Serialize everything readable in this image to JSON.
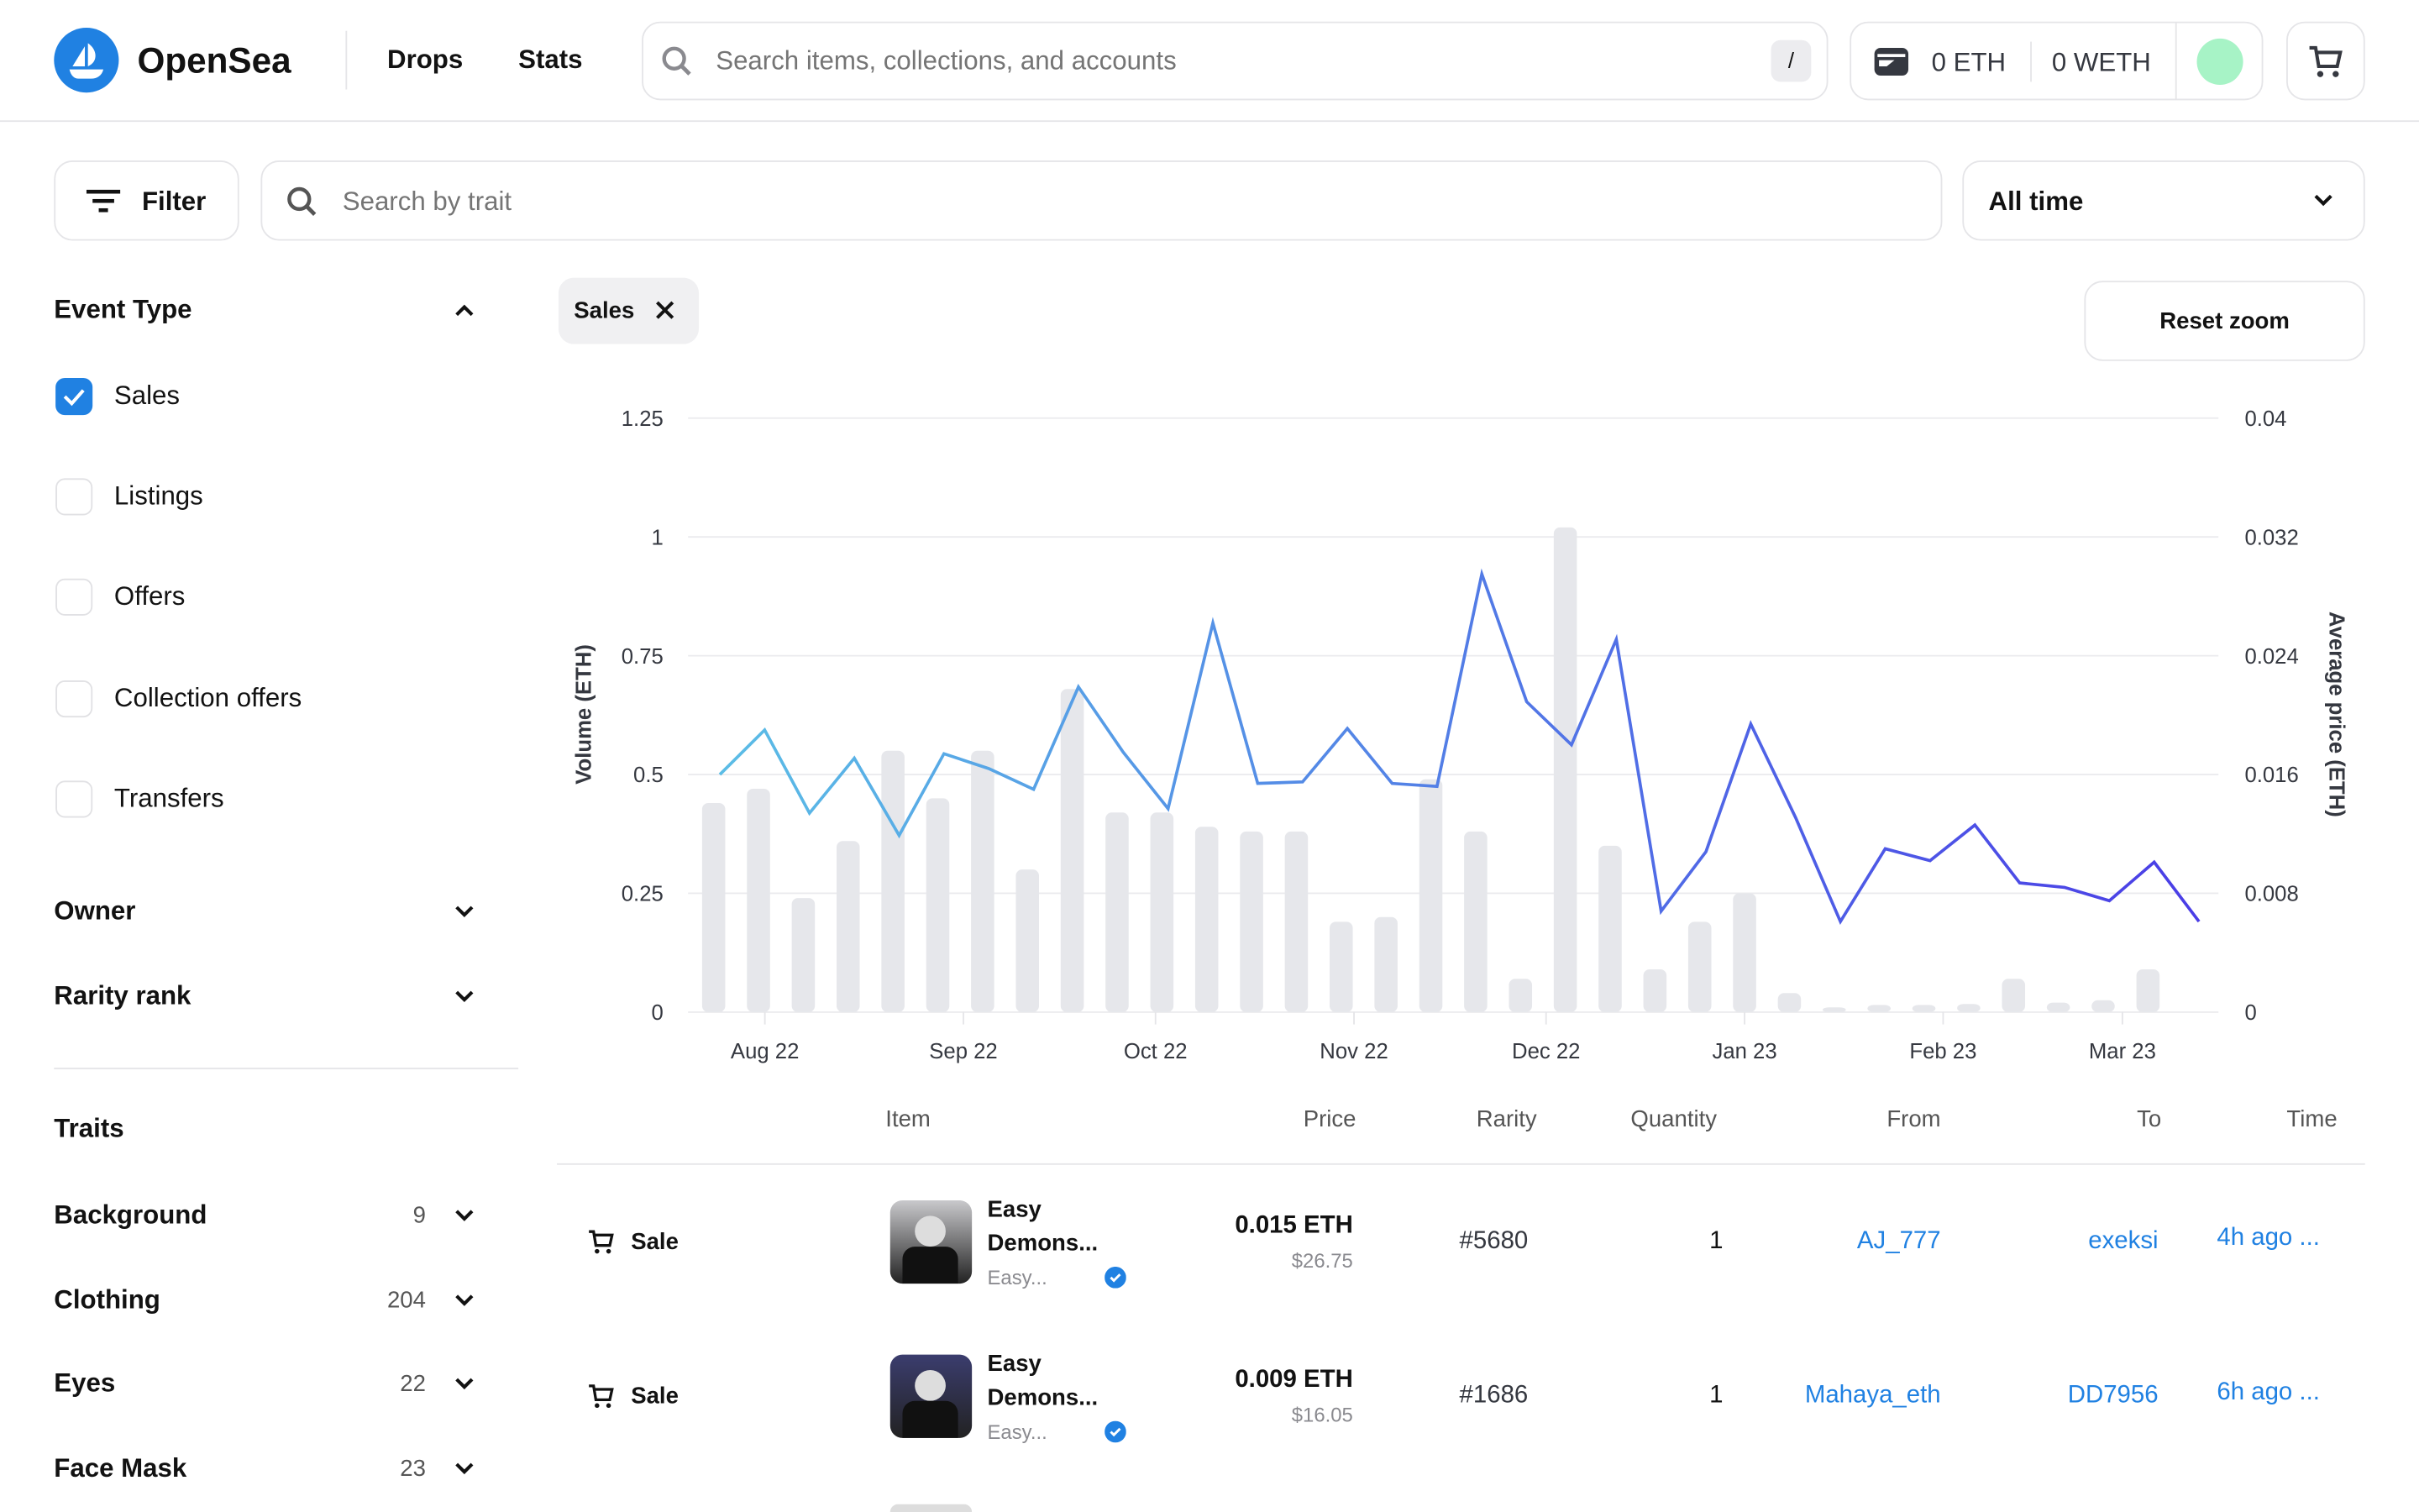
{
  "header": {
    "brand": "OpenSea",
    "nav": [
      "Drops",
      "Stats"
    ],
    "search_placeholder": "Search items, collections, and accounts",
    "search_shortcut": "/",
    "wallet": {
      "eth": "0 ETH",
      "weth": "0 WETH"
    },
    "avatar_color": "#a7f3c6"
  },
  "toolbar": {
    "filter_label": "Filter",
    "trait_search_placeholder": "Search by trait",
    "time_range": "All time"
  },
  "sidebar": {
    "event_type_title": "Event Type",
    "event_types": [
      {
        "label": "Sales",
        "checked": true
      },
      {
        "label": "Listings",
        "checked": false
      },
      {
        "label": "Offers",
        "checked": false
      },
      {
        "label": "Collection offers",
        "checked": false
      },
      {
        "label": "Transfers",
        "checked": false
      }
    ],
    "owner_title": "Owner",
    "rarity_title": "Rarity rank",
    "traits_title": "Traits",
    "traits": [
      {
        "label": "Background",
        "count": "9"
      },
      {
        "label": "Clothing",
        "count": "204"
      },
      {
        "label": "Eyes",
        "count": "22"
      },
      {
        "label": "Face Mask",
        "count": "23"
      }
    ]
  },
  "main": {
    "active_chip": "Sales",
    "reset_zoom": "Reset zoom"
  },
  "chart_data": {
    "type": "bar+line",
    "ylabel_left": "Volume (ETH)",
    "ylabel_right": "Average price (ETH)",
    "ylim_left": [
      0,
      1.25
    ],
    "ylim_right": [
      0,
      0.04
    ],
    "yticks_left": [
      "0",
      "0.25",
      "0.5",
      "0.75",
      "1",
      "1.25"
    ],
    "yticks_right": [
      "0",
      "0.008",
      "0.016",
      "0.024",
      "0.032",
      "0.04"
    ],
    "xlim": [
      "2022-07-20",
      "2023-03-16"
    ],
    "xticks": [
      {
        "label": "Aug 22",
        "date": "2022-08-01"
      },
      {
        "label": "Sep 22",
        "date": "2022-09-01"
      },
      {
        "label": "Oct 22",
        "date": "2022-10-01"
      },
      {
        "label": "Nov 22",
        "date": "2022-11-01"
      },
      {
        "label": "Dec 22",
        "date": "2022-12-01"
      },
      {
        "label": "Jan 23",
        "date": "2023-01-01"
      },
      {
        "label": "Feb 23",
        "date": "2023-02-01"
      },
      {
        "label": "Mar 23",
        "date": "2023-03-01"
      }
    ],
    "grid": true,
    "line_colors": [
      "#5bbde6",
      "#4a3de6"
    ],
    "bar_color": "#e6e7eb",
    "dates": [
      "2022-07-24",
      "2022-07-31",
      "2022-08-07",
      "2022-08-14",
      "2022-08-21",
      "2022-08-28",
      "2022-09-04",
      "2022-09-11",
      "2022-09-18",
      "2022-09-25",
      "2022-10-02",
      "2022-10-09",
      "2022-10-16",
      "2022-10-23",
      "2022-10-30",
      "2022-11-06",
      "2022-11-13",
      "2022-11-20",
      "2022-11-27",
      "2022-12-04",
      "2022-12-11",
      "2022-12-18",
      "2022-12-25",
      "2023-01-01",
      "2023-01-08",
      "2023-01-15",
      "2023-01-22",
      "2023-01-29",
      "2023-02-05",
      "2023-02-12",
      "2023-02-19",
      "2023-02-26",
      "2023-03-05",
      "2023-03-12"
    ],
    "volume": [
      0.44,
      0.47,
      0.24,
      0.36,
      0.55,
      0.45,
      0.55,
      0.3,
      0.68,
      0.42,
      0.42,
      0.39,
      0.38,
      0.38,
      0.19,
      0.2,
      0.49,
      0.38,
      0.07,
      1.02,
      0.35,
      0.09,
      0.19,
      0.25,
      0.04,
      0.01,
      0.015,
      0.015,
      0.017,
      0.07,
      0.02,
      0.025,
      0.09,
      0
    ],
    "avg_price": [
      0.016,
      0.019,
      0.0134,
      0.0171,
      0.0119,
      0.0174,
      0.0164,
      0.015,
      0.0219,
      0.0175,
      0.0137,
      0.0262,
      0.0154,
      0.0155,
      0.0191,
      0.0154,
      0.0152,
      0.0295,
      0.0209,
      0.018,
      0.0251,
      0.0068,
      0.0108,
      0.0194,
      0.0131,
      0.0061,
      0.011,
      0.0102,
      0.0126,
      0.0087,
      0.0084,
      0.0075,
      0.0101,
      0.0061
    ]
  },
  "table": {
    "headers": [
      "Item",
      "Price",
      "Rarity",
      "Quantity",
      "From",
      "To",
      "Time"
    ],
    "rows": [
      {
        "event": "Sale",
        "name_line1": "Easy",
        "name_line2": "Demons...",
        "collection": "Easy...",
        "price": "0.015 ETH",
        "usd": "$26.75",
        "rarity": "#5680",
        "quantity": "1",
        "from": "AJ_777",
        "to": "exeksi",
        "time": "4h ago ..."
      },
      {
        "event": "Sale",
        "name_line1": "Easy",
        "name_line2": "Demons...",
        "collection": "Easy...",
        "price": "0.009 ETH",
        "usd": "$16.05",
        "rarity": "#1686",
        "quantity": "1",
        "from": "Mahaya_eth",
        "to": "DD7956",
        "time": "6h ago ..."
      }
    ]
  }
}
